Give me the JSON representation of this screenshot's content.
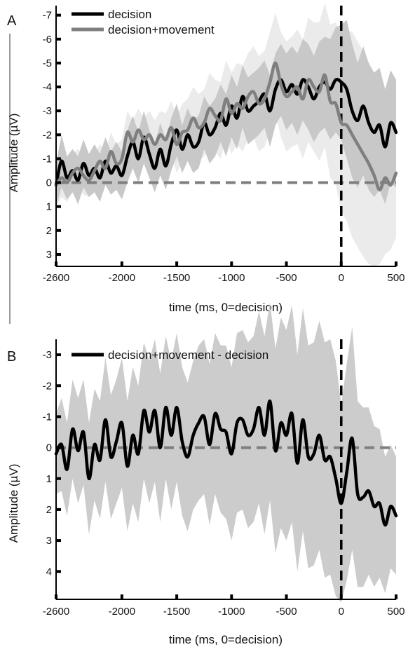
{
  "chart_data": [
    {
      "type": "line",
      "panel_label": "A",
      "xlabel": "time (ms, 0=decision)",
      "ylabel": "Amplitude (µV)",
      "xlim": [
        -2600,
        500
      ],
      "ylim": [
        -7.4,
        3.5
      ],
      "y_inverted": true,
      "xticks": [
        -2600,
        -2000,
        -1500,
        -1000,
        -500,
        0,
        500
      ],
      "yticks": [
        -7,
        -6,
        -5,
        -4,
        -3,
        -2,
        -1,
        0,
        1,
        2,
        3
      ],
      "grid": false,
      "legend_position": "top-left",
      "reference_lines": {
        "zero_line": 0,
        "decision_time": 0
      },
      "series": [
        {
          "name": "decision",
          "color": "#000000",
          "band_color": "#c8c8c8",
          "x": [
            -2600,
            -2550,
            -2500,
            -2450,
            -2400,
            -2350,
            -2300,
            -2250,
            -2200,
            -2150,
            -2100,
            -2050,
            -2000,
            -1950,
            -1900,
            -1850,
            -1800,
            -1750,
            -1700,
            -1650,
            -1600,
            -1550,
            -1500,
            -1450,
            -1400,
            -1350,
            -1300,
            -1250,
            -1200,
            -1150,
            -1100,
            -1050,
            -1000,
            -950,
            -900,
            -850,
            -800,
            -750,
            -700,
            -650,
            -600,
            -550,
            -500,
            -450,
            -400,
            -350,
            -300,
            -250,
            -200,
            -150,
            -100,
            -50,
            0,
            50,
            100,
            150,
            200,
            250,
            300,
            350,
            400,
            450,
            500
          ],
          "values": [
            0.1,
            -0.9,
            -0.2,
            -0.5,
            -0.1,
            -0.8,
            -0.3,
            -0.6,
            -0.2,
            -0.9,
            -0.4,
            -0.7,
            -0.3,
            -1.1,
            -1.7,
            -1.0,
            -1.9,
            -1.2,
            -0.6,
            -1.4,
            -0.7,
            -1.6,
            -2.2,
            -1.4,
            -2.0,
            -1.5,
            -1.7,
            -2.5,
            -2.0,
            -2.3,
            -2.9,
            -2.4,
            -3.2,
            -2.7,
            -3.6,
            -3.0,
            -3.2,
            -3.4,
            -3.7,
            -3.0,
            -3.9,
            -4.3,
            -3.8,
            -4.1,
            -3.7,
            -4.3,
            -4.0,
            -3.5,
            -4.0,
            -4.2,
            -3.9,
            -4.3,
            -4.2,
            -3.9,
            -3.0,
            -2.6,
            -3.2,
            -2.5,
            -2.1,
            -2.4,
            -1.5,
            -2.5,
            -2.1
          ],
          "band_lower": [
            1.0,
            0.2,
            0.7,
            0.4,
            0.9,
            0.2,
            0.6,
            0.4,
            0.8,
            0.1,
            0.5,
            0.3,
            0.7,
            0.0,
            -0.6,
            0.0,
            -0.8,
            -0.2,
            0.4,
            -0.3,
            0.3,
            -0.5,
            -1.1,
            -0.4,
            -0.9,
            -0.4,
            -0.6,
            -1.4,
            -0.8,
            -1.1,
            -1.7,
            -1.1,
            -1.9,
            -1.4,
            -2.3,
            -1.6,
            -1.8,
            -2.0,
            -2.3,
            -1.5,
            -2.4,
            -2.8,
            -2.2,
            -2.5,
            -2.0,
            -2.6,
            -2.2,
            -1.7,
            -2.1,
            -2.3,
            -1.8,
            -2.1,
            -1.8,
            -1.0,
            -0.2,
            0.2,
            -0.3,
            0.3,
            0.6,
            0.3,
            0.9,
            0.0,
            0.2
          ],
          "band_upper": [
            -0.8,
            -2.0,
            -1.1,
            -1.4,
            -1.1,
            -1.8,
            -1.2,
            -1.6,
            -1.2,
            -1.9,
            -1.3,
            -1.7,
            -1.3,
            -2.2,
            -2.8,
            -2.1,
            -3.0,
            -2.2,
            -1.6,
            -2.5,
            -1.8,
            -2.7,
            -3.3,
            -2.4,
            -3.1,
            -2.6,
            -2.8,
            -3.6,
            -3.2,
            -3.5,
            -4.1,
            -3.7,
            -4.5,
            -4.0,
            -4.9,
            -4.4,
            -4.6,
            -4.8,
            -5.1,
            -4.5,
            -5.4,
            -5.8,
            -5.4,
            -5.7,
            -5.4,
            -6.0,
            -5.8,
            -5.3,
            -5.9,
            -6.1,
            -6.0,
            -6.5,
            -6.6,
            -6.8,
            -5.8,
            -5.0,
            -5.7,
            -5.0,
            -4.6,
            -4.8,
            -3.9,
            -4.7,
            -4.3
          ]
        },
        {
          "name": "decision+movement",
          "color": "#7f7f7f",
          "band_color": "#ebebeb",
          "x": [
            -2600,
            -2550,
            -2500,
            -2450,
            -2400,
            -2350,
            -2300,
            -2250,
            -2200,
            -2150,
            -2100,
            -2050,
            -2000,
            -1950,
            -1900,
            -1850,
            -1800,
            -1750,
            -1700,
            -1650,
            -1600,
            -1550,
            -1500,
            -1450,
            -1400,
            -1350,
            -1300,
            -1250,
            -1200,
            -1150,
            -1100,
            -1050,
            -1000,
            -950,
            -900,
            -850,
            -800,
            -750,
            -700,
            -650,
            -600,
            -550,
            -500,
            -450,
            -400,
            -350,
            -300,
            -250,
            -200,
            -150,
            -100,
            -50,
            0,
            50,
            100,
            150,
            200,
            250,
            300,
            350,
            400,
            450,
            500
          ],
          "values": [
            0.1,
            -0.2,
            0.0,
            -0.4,
            -0.6,
            -0.3,
            -0.1,
            -0.5,
            -0.9,
            -0.6,
            -1.3,
            -0.8,
            -1.0,
            -2.1,
            -1.7,
            -2.2,
            -1.8,
            -2.0,
            -1.6,
            -2.0,
            -1.8,
            -2.3,
            -1.6,
            -2.1,
            -2.2,
            -2.7,
            -2.3,
            -2.5,
            -3.1,
            -2.8,
            -2.6,
            -3.5,
            -2.9,
            -3.3,
            -3.1,
            -3.6,
            -3.8,
            -3.3,
            -3.5,
            -4.2,
            -5.0,
            -4.1,
            -3.6,
            -3.8,
            -4.0,
            -3.5,
            -4.3,
            -4.0,
            -3.8,
            -4.5,
            -3.4,
            -3.3,
            -2.5,
            -2.4,
            -2.0,
            -1.6,
            -1.2,
            -0.8,
            -0.3,
            0.3,
            -0.2,
            0.1,
            -0.4
          ],
          "band_lower": [
            1.0,
            0.6,
            0.8,
            0.4,
            0.2,
            0.5,
            0.6,
            0.2,
            -0.1,
            0.1,
            -0.5,
            0.0,
            -0.2,
            -1.2,
            -0.8,
            -1.3,
            -0.9,
            -1.0,
            -0.6,
            -1.0,
            -0.7,
            -1.2,
            -0.4,
            -0.9,
            -0.9,
            -1.4,
            -0.9,
            -1.1,
            -1.6,
            -1.3,
            -1.0,
            -1.9,
            -1.2,
            -1.6,
            -1.3,
            -1.8,
            -1.9,
            -1.3,
            -1.5,
            -2.1,
            -2.9,
            -1.9,
            -1.3,
            -1.5,
            -1.6,
            -1.0,
            -1.7,
            -1.3,
            -0.9,
            -1.5,
            -0.2,
            0.1,
            1.2,
            1.6,
            2.3,
            2.7,
            3.1,
            3.4,
            3.5,
            3.4,
            3.0,
            2.8,
            2.3
          ],
          "band_upper": [
            -0.8,
            -1.0,
            -0.8,
            -1.2,
            -1.4,
            -1.1,
            -0.8,
            -1.2,
            -1.6,
            -1.3,
            -2.1,
            -1.6,
            -1.8,
            -3.0,
            -2.6,
            -3.1,
            -2.7,
            -3.0,
            -2.6,
            -3.0,
            -2.9,
            -3.4,
            -2.8,
            -3.3,
            -3.5,
            -4.0,
            -3.7,
            -3.9,
            -4.6,
            -4.3,
            -4.2,
            -5.1,
            -4.6,
            -5.0,
            -4.9,
            -5.4,
            -5.7,
            -5.3,
            -5.5,
            -6.3,
            -7.1,
            -6.3,
            -5.9,
            -6.1,
            -6.4,
            -6.0,
            -6.9,
            -6.7,
            -6.7,
            -7.5,
            -6.6,
            -6.7,
            -6.2,
            -6.4,
            -6.3,
            -5.9,
            -5.5,
            -5.0,
            -4.1,
            -2.8,
            -3.4,
            -2.6,
            -3.1
          ]
        }
      ]
    },
    {
      "type": "line",
      "panel_label": "B",
      "xlabel": "time (ms, 0=decision)",
      "ylabel": "Amplitude (µV)",
      "xlim": [
        -2600,
        500
      ],
      "ylim": [
        -3.5,
        4.9
      ],
      "y_inverted": true,
      "xticks": [
        -2600,
        -2000,
        -1500,
        -1000,
        -500,
        0,
        500
      ],
      "yticks": [
        -3,
        -2,
        -1,
        0,
        1,
        2,
        3,
        4
      ],
      "grid": false,
      "legend_position": "top-left",
      "reference_lines": {
        "zero_line": 0,
        "decision_time": 0
      },
      "series": [
        {
          "name": "decision+movement - decision",
          "color": "#000000",
          "band_color": "#cccccc",
          "x": [
            -2600,
            -2550,
            -2500,
            -2450,
            -2400,
            -2350,
            -2300,
            -2250,
            -2200,
            -2150,
            -2100,
            -2050,
            -2000,
            -1950,
            -1900,
            -1850,
            -1800,
            -1750,
            -1700,
            -1650,
            -1600,
            -1550,
            -1500,
            -1450,
            -1400,
            -1350,
            -1300,
            -1250,
            -1200,
            -1150,
            -1100,
            -1050,
            -1000,
            -950,
            -900,
            -850,
            -800,
            -750,
            -700,
            -650,
            -600,
            -550,
            -500,
            -450,
            -400,
            -350,
            -300,
            -250,
            -200,
            -150,
            -100,
            -50,
            0,
            50,
            100,
            150,
            200,
            250,
            300,
            350,
            400,
            450,
            500
          ],
          "values": [
            0.2,
            -0.1,
            0.7,
            -0.6,
            0.1,
            -0.5,
            1.0,
            -0.1,
            0.4,
            -0.9,
            0.3,
            -0.2,
            -0.8,
            0.6,
            -0.4,
            0.2,
            -1.2,
            -0.5,
            -1.2,
            0.0,
            -1.3,
            -0.4,
            -1.3,
            -0.2,
            0.3,
            -0.4,
            -0.8,
            -1.0,
            -0.1,
            -1.1,
            -0.6,
            -0.5,
            0.2,
            -0.8,
            -0.9,
            -0.4,
            -0.6,
            -1.3,
            -0.4,
            -1.5,
            0.1,
            -0.8,
            -0.4,
            -1.1,
            0.5,
            -0.9,
            0.3,
            0.2,
            -0.4,
            0.4,
            0.3,
            1.0,
            1.8,
            0.8,
            -0.3,
            1.5,
            1.6,
            1.4,
            1.9,
            1.8,
            2.5,
            1.9,
            2.2
          ],
          "band_lower": [
            1.5,
            1.4,
            2.2,
            1.0,
            1.8,
            1.2,
            2.8,
            1.7,
            2.3,
            1.1,
            2.3,
            1.8,
            1.3,
            2.7,
            1.8,
            2.4,
            1.0,
            1.8,
            1.1,
            2.4,
            1.0,
            2.0,
            1.1,
            2.2,
            2.7,
            2.0,
            1.7,
            1.5,
            2.5,
            1.5,
            2.1,
            2.3,
            3.0,
            2.1,
            2.0,
            2.6,
            2.4,
            1.8,
            2.8,
            1.7,
            3.4,
            2.6,
            3.0,
            2.4,
            4.0,
            2.7,
            3.9,
            3.8,
            3.3,
            4.2,
            4.1,
            4.8,
            5.0,
            4.3,
            3.3,
            4.5,
            4.5,
            4.1,
            4.5,
            4.2,
            4.7,
            3.9,
            4.1
          ],
          "band_upper": [
            -1.1,
            -1.6,
            -0.8,
            -2.2,
            -1.6,
            -2.2,
            -0.8,
            -1.9,
            -1.5,
            -2.9,
            -1.7,
            -2.2,
            -2.9,
            -1.5,
            -2.6,
            -2.0,
            -3.4,
            -2.8,
            -3.5,
            -2.4,
            -3.6,
            -2.8,
            -3.7,
            -2.6,
            -2.1,
            -2.8,
            -3.3,
            -3.5,
            -2.7,
            -3.7,
            -3.3,
            -3.3,
            -2.6,
            -3.7,
            -3.8,
            -3.4,
            -3.6,
            -4.4,
            -3.6,
            -4.7,
            -3.2,
            -4.2,
            -3.8,
            -4.6,
            -3.0,
            -4.5,
            -3.3,
            -3.4,
            -4.1,
            -3.4,
            -3.5,
            -2.8,
            -1.4,
            -2.7,
            -3.9,
            -1.5,
            -1.3,
            -1.3,
            -0.7,
            -0.6,
            0.3,
            -0.1,
            0.3
          ]
        }
      ]
    }
  ]
}
